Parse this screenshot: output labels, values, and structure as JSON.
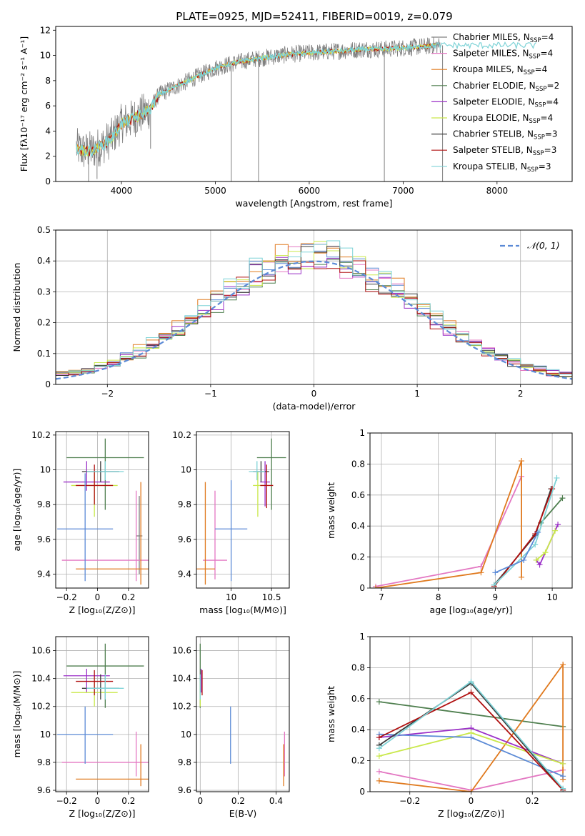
{
  "figure": {
    "title": "PLATE=0925, MJD=52411, FIBERID=0019, z=0.079"
  },
  "colors": {
    "Chabrier MILES": "#808080",
    "Salpeter MILES": "#e377c2",
    "Kroupa MILES": "#e07a1f",
    "Chabrier ELODIE": "#4f7f4f",
    "Salpeter ELODIE": "#9b30c8",
    "Kroupa ELODIE": "#c9e84a",
    "Chabrier STELIB": "#3b3b3b",
    "Salpeter STELIB": "#b01010",
    "Kroupa STELIB": "#7ed3d7",
    "normal_curve": "#5b8ad6",
    "grid": "#b0b0b0"
  },
  "chart_data": [
    {
      "id": "spectrum",
      "type": "line",
      "title": "PLATE=0925, MJD=52411, FIBERID=0019, z=0.079",
      "xlabel": "wavelength [Angstrom, rest frame]",
      "ylabel": "Flux [fλ10⁻¹⁷ erg cm⁻² s⁻¹ A⁻¹]",
      "xlim": [
        3300,
        8800
      ],
      "ylim": [
        0,
        12.3
      ],
      "xticks": [
        4000,
        5000,
        6000,
        7000,
        8000
      ],
      "yticks": [
        0,
        2,
        4,
        6,
        8,
        10,
        12
      ],
      "grid": false,
      "legend_position": "top-right",
      "legend": [
        {
          "label": "Chabrier MILES, N",
          "sub": "SSP",
          "tail": "=4"
        },
        {
          "label": "Salpeter MILES, N",
          "sub": "SSP",
          "tail": "=4"
        },
        {
          "label": "Kroupa MILES, N",
          "sub": "SSP",
          "tail": "=4"
        },
        {
          "label": "Chabrier ELODIE, N",
          "sub": "SSP",
          "tail": "=2"
        },
        {
          "label": "Salpeter ELODIE, N",
          "sub": "SSP",
          "tail": "=4"
        },
        {
          "label": "Kroupa ELODIE, N",
          "sub": "SSP",
          "tail": "=4"
        },
        {
          "label": "Chabrier STELIB, N",
          "sub": "SSP",
          "tail": "=3"
        },
        {
          "label": "Salpeter STELIB, N",
          "sub": "SSP",
          "tail": "=3"
        },
        {
          "label": "Kroupa STELIB, N",
          "sub": "SSP",
          "tail": "=3"
        }
      ],
      "continuum": {
        "x": [
          3520,
          3600,
          3700,
          3800,
          3900,
          4000,
          4100,
          4200,
          4300,
          4400,
          4600,
          4800,
          5000,
          5200,
          5400,
          5600,
          5800,
          6000,
          6200,
          6400,
          6600,
          6800,
          7000,
          7200,
          7400
        ],
        "y": [
          2.7,
          2.4,
          2.5,
          2.9,
          3.5,
          4.6,
          4.9,
          5.3,
          5.7,
          6.9,
          7.6,
          8.3,
          9.0,
          9.4,
          9.7,
          9.9,
          10.1,
          10.2,
          10.3,
          10.4,
          10.5,
          10.5,
          10.6,
          10.7,
          10.8
        ]
      },
      "absorption_lines": [
        {
          "x": 3650,
          "y_min": 0.0
        },
        {
          "x": 3740,
          "y_min": 0.2
        },
        {
          "x": 4310,
          "y_min": 2.6
        },
        {
          "x": 5170,
          "y_min": 0.0
        },
        {
          "x": 5460,
          "y_min": 0.0
        },
        {
          "x": 6800,
          "y_min": 0.0
        },
        {
          "x": 7420,
          "y_min": 0.0
        }
      ]
    },
    {
      "id": "residual-hist",
      "type": "bar",
      "xlabel": "(data-model)/error",
      "ylabel": "Normed distribution",
      "xlim": [
        -2.5,
        2.5
      ],
      "ylim": [
        0,
        0.5
      ],
      "xticks": [
        -2,
        -1,
        0,
        1,
        2
      ],
      "yticks": [
        0.0,
        0.1,
        0.2,
        0.3,
        0.4,
        0.5
      ],
      "grid": true,
      "legend_position": "top-right",
      "legend": [
        {
          "label": "𝒩(0, 1)"
        }
      ],
      "bin_edges_range": [
        -2.5,
        2.5
      ],
      "bin_count": 40,
      "series_amplitude": [
        0.41,
        0.4,
        0.42,
        0.39,
        0.4,
        0.41,
        0.4,
        0.39,
        0.42
      ],
      "normal": {
        "mu": 0,
        "sigma": 1
      }
    },
    {
      "id": "age-vs-Z",
      "type": "scatter",
      "xlabel": "Z [log₁₀(Z/Z⊙)]",
      "ylabel": "age  [log₁₀(age/yr)]",
      "xlim": [
        -0.27,
        0.33
      ],
      "ylim": [
        9.32,
        10.22
      ],
      "xticks": [
        -0.2,
        0.0,
        0.2
      ],
      "yticks": [
        9.4,
        9.6,
        9.8,
        10.0,
        10.2
      ],
      "grid": true,
      "points": [
        {
          "series": "Chabrier MILES",
          "x": 0.27,
          "y": 9.62,
          "xerr": 0.02,
          "yerr_low": 0.22,
          "yerr_high": 0.23
        },
        {
          "series": "Salpeter MILES",
          "x": 0.25,
          "y": 9.48,
          "xerr": 0.48,
          "yerr_low": 0.12,
          "yerr_high": 0.4
        },
        {
          "series": "Kroupa MILES",
          "x": 0.28,
          "y": 9.43,
          "xerr": 0.42,
          "yerr_low": 0.09,
          "yerr_high": 0.5
        },
        {
          "series": "Chabrier ELODIE",
          "x": 0.05,
          "y": 10.07,
          "xerr": 0.25,
          "yerr_low": 0.3,
          "yerr_high": 0.11
        },
        {
          "series": "Salpeter ELODIE",
          "x": -0.07,
          "y": 9.93,
          "xerr": 0.15,
          "yerr_low": 0.05,
          "yerr_high": 0.12
        },
        {
          "series": "Kroupa ELODIE",
          "x": -0.02,
          "y": 9.91,
          "xerr": 0.15,
          "yerr_low": 0.18,
          "yerr_high": 0.08
        },
        {
          "series": "Chabrier STELIB",
          "x": 0.02,
          "y": 9.99,
          "xerr": 0.12,
          "yerr_low": 0.06,
          "yerr_high": 0.06
        },
        {
          "series": "Salpeter STELIB",
          "x": -0.02,
          "y": 9.91,
          "xerr": 0.12,
          "yerr_low": 0.11,
          "yerr_high": 0.12
        },
        {
          "series": "Kroupa STELIB",
          "x": 0.05,
          "y": 9.99,
          "xerr": 0.12,
          "yerr_low": 0.05,
          "yerr_high": 0.06
        },
        {
          "series": "blue",
          "x": -0.08,
          "y": 9.66,
          "xerr": 0.18,
          "yerr_low": 0.3,
          "yerr_high": 0.32
        }
      ]
    },
    {
      "id": "age-vs-mass",
      "type": "scatter",
      "xlabel": "mass [log₁₀(M/M⊙)]",
      "ylabel": "",
      "xlim": [
        9.57,
        10.72
      ],
      "ylim": [
        9.32,
        10.22
      ],
      "xticks": [
        10.0,
        10.5
      ],
      "yticks": [
        9.4,
        9.6,
        9.8,
        10.0,
        10.2
      ],
      "grid": true,
      "points": [
        {
          "series": "Salpeter MILES",
          "x": 9.8,
          "y": 9.48,
          "xerr": 0.15,
          "yerr_low": 0.11,
          "yerr_high": 0.4
        },
        {
          "series": "Kroupa MILES",
          "x": 9.68,
          "y": 9.43,
          "xerr": 0.12,
          "yerr_low": 0.09,
          "yerr_high": 0.5
        },
        {
          "series": "Chabrier ELODIE",
          "x": 10.5,
          "y": 10.07,
          "xerr": 0.18,
          "yerr_low": 0.3,
          "yerr_high": 0.11
        },
        {
          "series": "Salpeter ELODIE",
          "x": 10.42,
          "y": 9.93,
          "xerr": 0.06,
          "yerr_low": 0.14,
          "yerr_high": 0.12
        },
        {
          "series": "Kroupa ELODIE",
          "x": 10.33,
          "y": 9.91,
          "xerr": 0.06,
          "yerr_low": 0.18,
          "yerr_high": 0.08
        },
        {
          "series": "Chabrier STELIB",
          "x": 10.37,
          "y": 9.99,
          "xerr": 0.1,
          "yerr_low": 0.06,
          "yerr_high": 0.06
        },
        {
          "series": "Salpeter STELIB",
          "x": 10.44,
          "y": 9.91,
          "xerr": 0.08,
          "yerr_low": 0.13,
          "yerr_high": 0.12
        },
        {
          "series": "Kroupa STELIB",
          "x": 10.32,
          "y": 9.99,
          "xerr": 0.1,
          "yerr_low": 0.05,
          "yerr_high": 0.06
        },
        {
          "series": "blue",
          "x": 10.0,
          "y": 9.66,
          "xerr": 0.2,
          "yerr_low": 0.3,
          "yerr_high": 0.28
        }
      ]
    },
    {
      "id": "mass-weight-vs-age",
      "type": "line",
      "xlabel": "age  [log₁₀(age/yr)]",
      "ylabel": "mass weight",
      "xlim": [
        6.8,
        10.35
      ],
      "ylim": [
        0,
        1.0
      ],
      "xticks": [
        7,
        8,
        9,
        10
      ],
      "yticks": [
        0.0,
        0.2,
        0.4,
        0.6,
        0.8,
        1.0
      ],
      "grid": true,
      "series": [
        {
          "name": "Salpeter MILES",
          "x": [
            6.9,
            8.75,
            9.46
          ],
          "y": [
            0.01,
            0.14,
            0.72
          ]
        },
        {
          "name": "Kroupa MILES",
          "x": [
            6.9,
            8.75,
            9.46,
            9.46
          ],
          "y": [
            0.0,
            0.1,
            0.82,
            0.07
          ]
        },
        {
          "name": "Chabrier ELODIE",
          "x": [
            9.8,
            10.18
          ],
          "y": [
            0.42,
            0.58
          ]
        },
        {
          "name": "Salpeter ELODIE",
          "x": [
            9.72,
            9.78,
            10.1
          ],
          "y": [
            0.18,
            0.15,
            0.41
          ]
        },
        {
          "name": "Kroupa ELODIE",
          "x": [
            9.72,
            9.88,
            10.05
          ],
          "y": [
            0.18,
            0.23,
            0.37
          ]
        },
        {
          "name": "Chabrier STELIB",
          "x": [
            8.98,
            9.7,
            9.98
          ],
          "y": [
            0.02,
            0.34,
            0.64
          ]
        },
        {
          "name": "Salpeter STELIB",
          "x": [
            8.98,
            9.7,
            10.0
          ],
          "y": [
            0.01,
            0.35,
            0.64
          ]
        },
        {
          "name": "Kroupa STELIB",
          "x": [
            8.98,
            9.7,
            10.08
          ],
          "y": [
            0.02,
            0.28,
            0.71
          ]
        },
        {
          "name": "blue",
          "x": [
            9.0,
            9.5,
            9.75
          ],
          "y": [
            0.1,
            0.18,
            0.36
          ]
        }
      ]
    },
    {
      "id": "mass-vs-Z",
      "type": "scatter",
      "xlabel": "Z [log₁₀(Z/Z⊙)]",
      "ylabel": "mass [log₁₀(M/M⊙)]",
      "xlim": [
        -0.27,
        0.33
      ],
      "ylim": [
        9.59,
        10.7
      ],
      "xticks": [
        -0.2,
        0.0,
        0.2
      ],
      "yticks": [
        9.6,
        9.8,
        10.0,
        10.2,
        10.4,
        10.6
      ],
      "grid": true,
      "points": [
        {
          "series": "Salpeter MILES",
          "x": 0.25,
          "y": 9.8,
          "xerr": 0.48,
          "yerr_low": 0.1,
          "yerr_high": 0.22
        },
        {
          "series": "Kroupa MILES",
          "x": 0.28,
          "y": 9.68,
          "xerr": 0.42,
          "yerr_low": 0.05,
          "yerr_high": 0.25
        },
        {
          "series": "Chabrier ELODIE",
          "x": 0.05,
          "y": 10.49,
          "xerr": 0.25,
          "yerr_low": 0.3,
          "yerr_high": 0.16
        },
        {
          "series": "Salpeter ELODIE",
          "x": -0.07,
          "y": 10.42,
          "xerr": 0.15,
          "yerr_low": 0.12,
          "yerr_high": 0.05
        },
        {
          "series": "Kroupa ELODIE",
          "x": -0.02,
          "y": 10.3,
          "xerr": 0.15,
          "yerr_low": 0.1,
          "yerr_high": 0.08
        },
        {
          "series": "Chabrier STELIB",
          "x": 0.02,
          "y": 10.33,
          "xerr": 0.12,
          "yerr_low": 0.08,
          "yerr_high": 0.1
        },
        {
          "series": "Salpeter STELIB",
          "x": -0.02,
          "y": 10.38,
          "xerr": 0.12,
          "yerr_low": 0.1,
          "yerr_high": 0.08
        },
        {
          "series": "Kroupa STELIB",
          "x": 0.05,
          "y": 10.33,
          "xerr": 0.12,
          "yerr_low": 0.08,
          "yerr_high": 0.1
        },
        {
          "series": "blue",
          "x": -0.08,
          "y": 10.0,
          "xerr": 0.18,
          "yerr_low": 0.21,
          "yerr_high": 0.2
        }
      ]
    },
    {
      "id": "mass-vs-ebv",
      "type": "scatter",
      "xlabel": "E(B-V)",
      "ylabel": "",
      "xlim": [
        -0.02,
        0.47
      ],
      "ylim": [
        9.59,
        10.7
      ],
      "xticks": [
        0.0,
        0.2,
        0.4
      ],
      "yticks": [
        9.6,
        9.8,
        10.0,
        10.2,
        10.4,
        10.6
      ],
      "grid": true,
      "points": [
        {
          "series": "Salpeter MILES",
          "x": 0.445,
          "y": 9.8,
          "xerr": 0.0,
          "yerr_low": 0.1,
          "yerr_high": 0.22
        },
        {
          "series": "Kroupa MILES",
          "x": 0.44,
          "y": 9.68,
          "xerr": 0.0,
          "yerr_low": 0.05,
          "yerr_high": 0.25
        },
        {
          "series": "Chabrier ELODIE",
          "x": 0.0,
          "y": 10.49,
          "xerr": 0.0,
          "yerr_low": 0.3,
          "yerr_high": 0.16
        },
        {
          "series": "Salpeter ELODIE",
          "x": 0.005,
          "y": 10.42,
          "xerr": 0.0,
          "yerr_low": 0.12,
          "yerr_high": 0.05
        },
        {
          "series": "Kroupa ELODIE",
          "x": 0.0,
          "y": 10.3,
          "xerr": 0.0,
          "yerr_low": 0.1,
          "yerr_high": 0.08
        },
        {
          "series": "Salpeter STELIB",
          "x": 0.01,
          "y": 10.38,
          "xerr": 0.0,
          "yerr_low": 0.1,
          "yerr_high": 0.08
        },
        {
          "series": "Kroupa STELIB",
          "x": 0.0,
          "y": 10.33,
          "xerr": 0.0,
          "yerr_low": 0.08,
          "yerr_high": 0.1
        },
        {
          "series": "blue",
          "x": 0.16,
          "y": 10.0,
          "xerr": 0.0,
          "yerr_low": 0.21,
          "yerr_high": 0.2
        }
      ]
    },
    {
      "id": "mass-weight-vs-Z",
      "type": "line",
      "xlabel": "Z [log₁₀(Z/Z⊙)]",
      "ylabel": "mass weight",
      "xlim": [
        -0.33,
        0.33
      ],
      "ylim": [
        0,
        1.0
      ],
      "xticks": [
        -0.2,
        0.0,
        0.2
      ],
      "yticks": [
        0.0,
        0.2,
        0.4,
        0.6,
        0.8,
        1.0
      ],
      "grid": true,
      "series": [
        {
          "name": "Chabrier ELODIE",
          "x": [
            -0.3,
            0.3
          ],
          "y": [
            0.58,
            0.42
          ]
        },
        {
          "name": "Salpeter MILES",
          "x": [
            -0.3,
            0.0,
            0.3
          ],
          "y": [
            0.13,
            0.01,
            0.14
          ]
        },
        {
          "name": "Kroupa MILES",
          "x": [
            -0.3,
            0.0,
            0.3,
            0.3
          ],
          "y": [
            0.07,
            0.0,
            0.82,
            0.08
          ]
        },
        {
          "name": "Salpeter ELODIE",
          "x": [
            -0.3,
            0.0,
            0.3
          ],
          "y": [
            0.35,
            0.41,
            0.18
          ]
        },
        {
          "name": "Kroupa ELODIE",
          "x": [
            -0.3,
            0.0,
            0.3
          ],
          "y": [
            0.23,
            0.38,
            0.18
          ]
        },
        {
          "name": "blue",
          "x": [
            -0.3,
            0.0,
            0.3
          ],
          "y": [
            0.37,
            0.35,
            0.1
          ]
        },
        {
          "name": "Chabrier STELIB",
          "x": [
            -0.3,
            0.0,
            0.3
          ],
          "y": [
            0.3,
            0.7,
            0.01
          ]
        },
        {
          "name": "Salpeter STELIB",
          "x": [
            -0.3,
            0.0,
            0.3
          ],
          "y": [
            0.35,
            0.64,
            0.01
          ]
        },
        {
          "name": "Kroupa STELIB",
          "x": [
            -0.3,
            0.0,
            0.3
          ],
          "y": [
            0.28,
            0.71,
            0.02
          ]
        }
      ]
    }
  ]
}
